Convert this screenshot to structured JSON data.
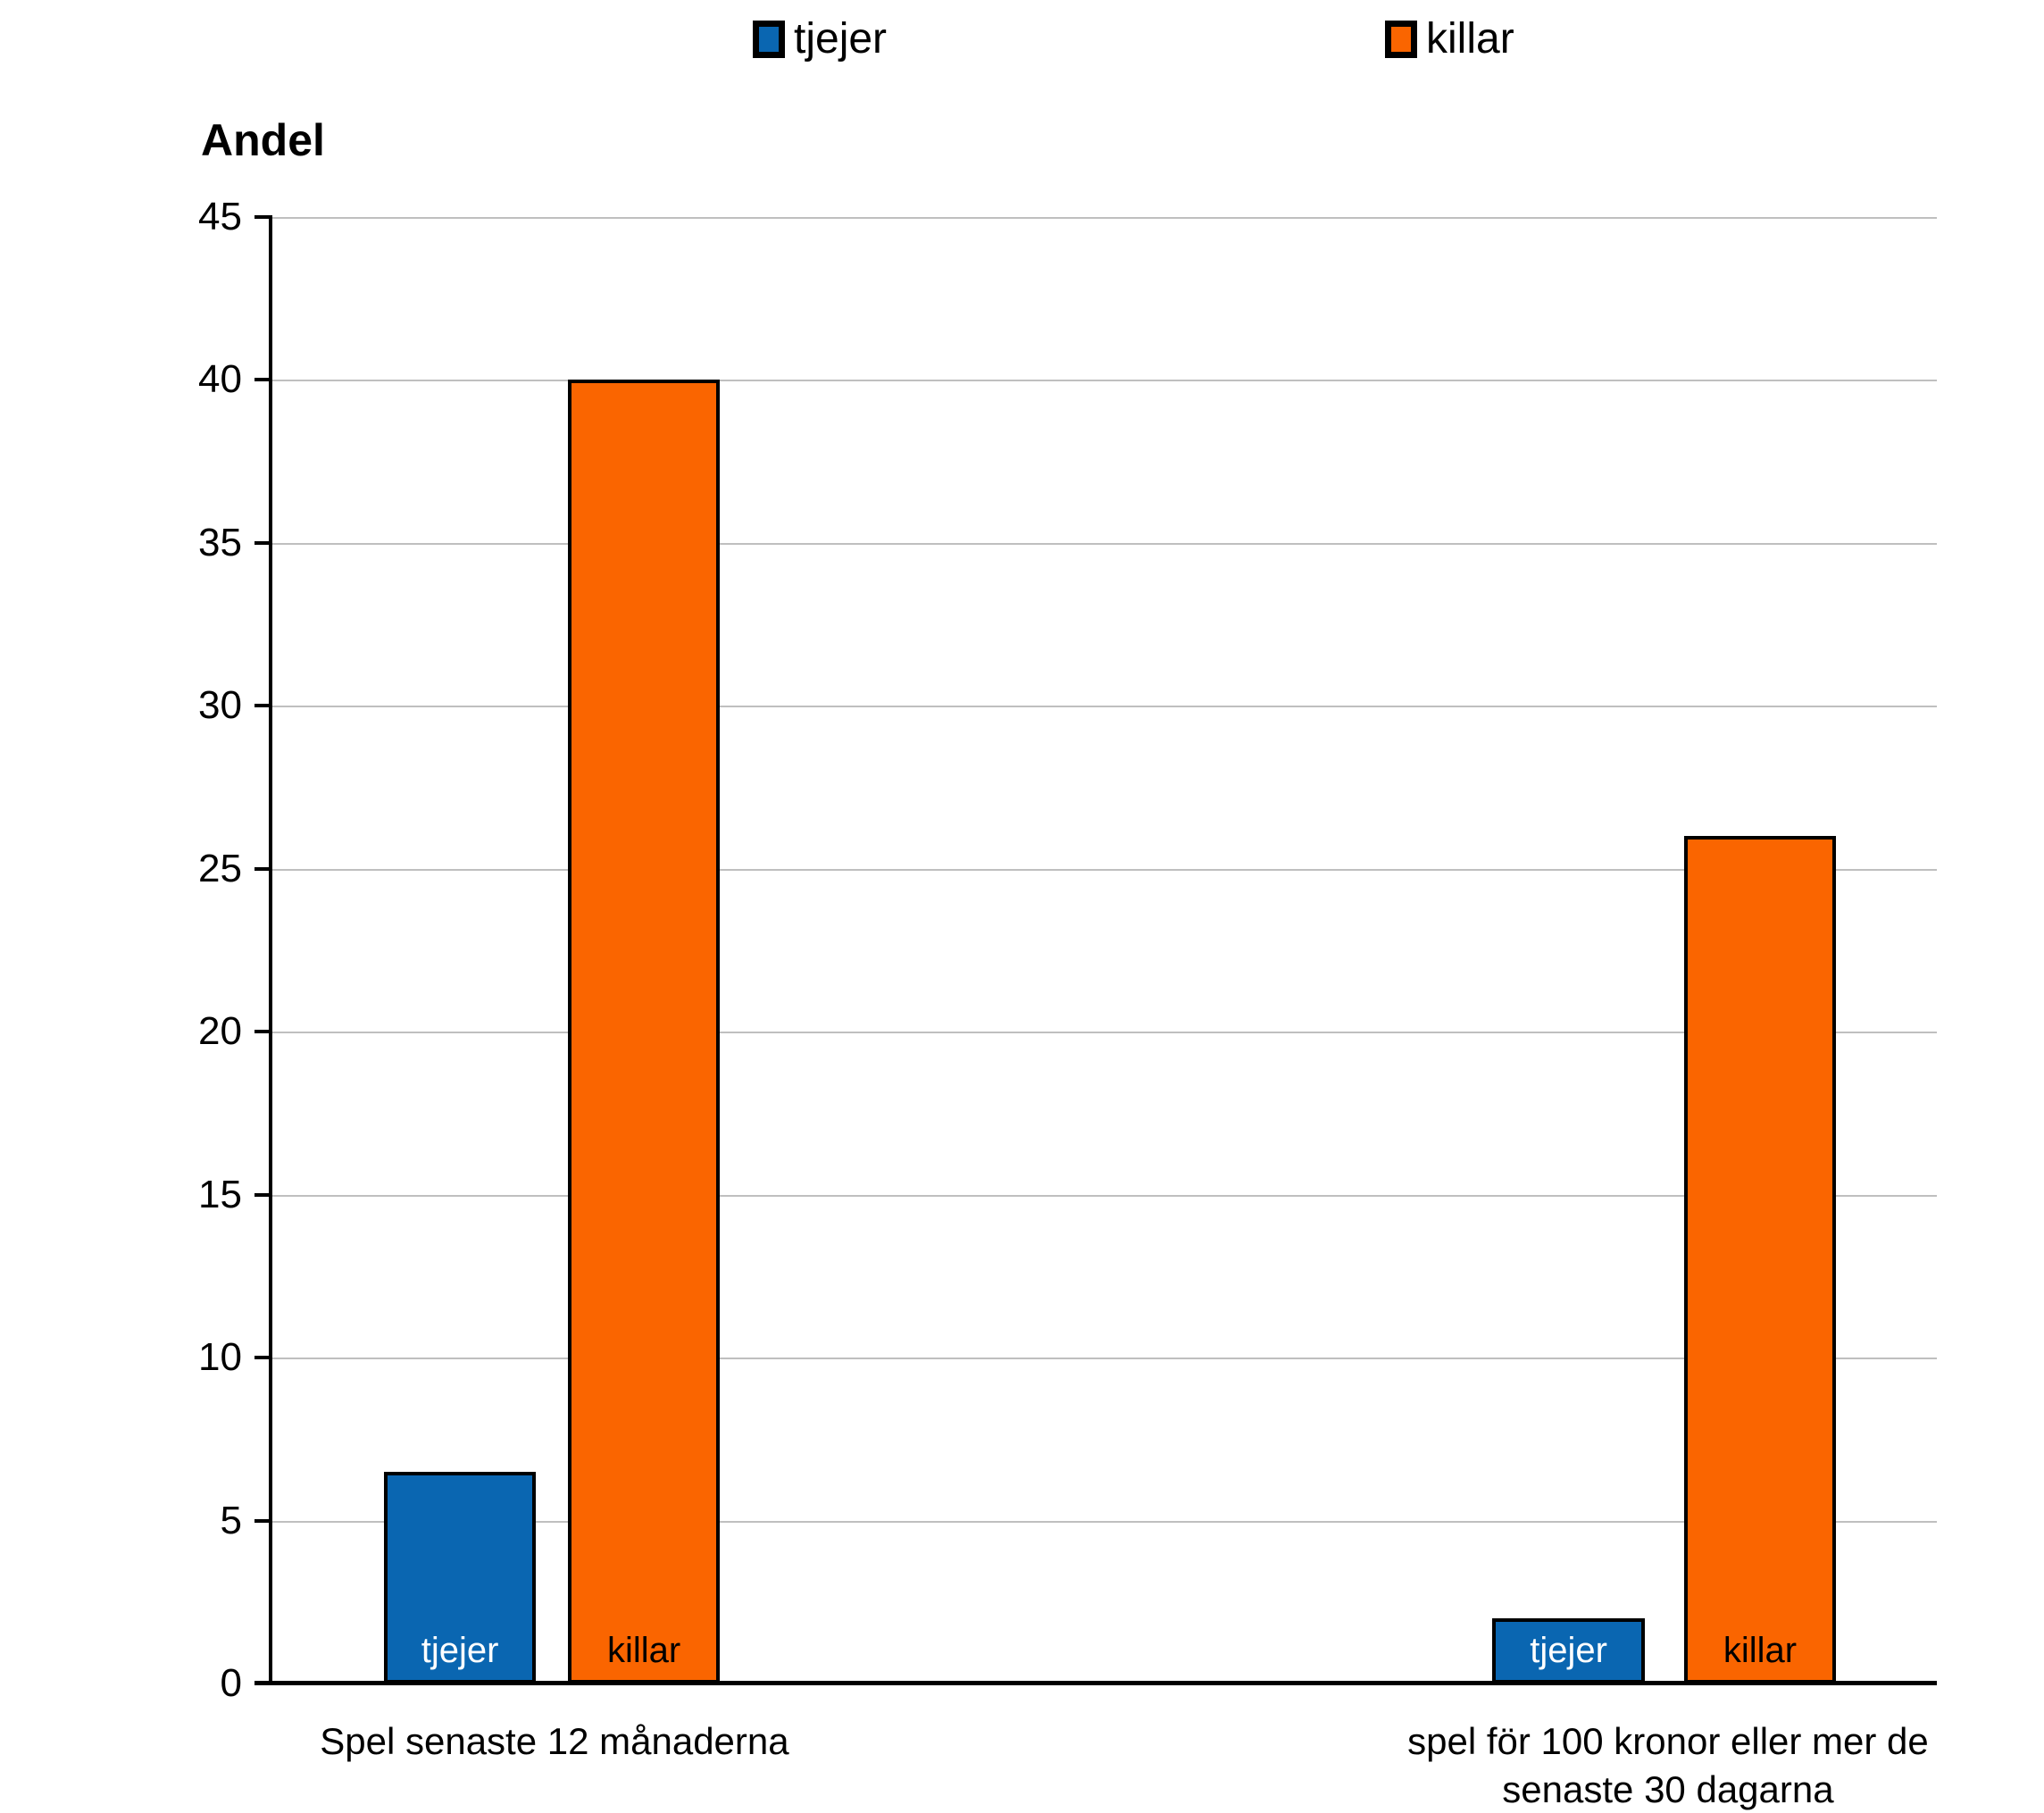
{
  "chart_data": {
    "type": "bar",
    "y_axis_title": "Andel",
    "categories": [
      "Spel senaste 12 månaderna",
      "spel för 100 kronor eller mer de senaste 30 dagarna"
    ],
    "series": [
      {
        "name": "tjejer",
        "color": "#0A66B1",
        "label_text_color": "#FFFFFF",
        "values": [
          6.5,
          2
        ]
      },
      {
        "name": "killar",
        "color": "#FA6500",
        "label_text_color": "#000000",
        "values": [
          40,
          26
        ]
      }
    ],
    "bar_inner_labels": true,
    "ylim": [
      0,
      45
    ],
    "ytick_step": 5,
    "ytick_labels": [
      "0",
      "5",
      "10",
      "15",
      "20",
      "25",
      "30",
      "35",
      "40",
      "45"
    ],
    "grid": true,
    "legend_position": "top",
    "legend_labels": [
      "tjejer",
      "killar"
    ],
    "axis_color": "#000000",
    "gridline_color": "#BFBFBF",
    "background_color": "#FFFFFF"
  }
}
